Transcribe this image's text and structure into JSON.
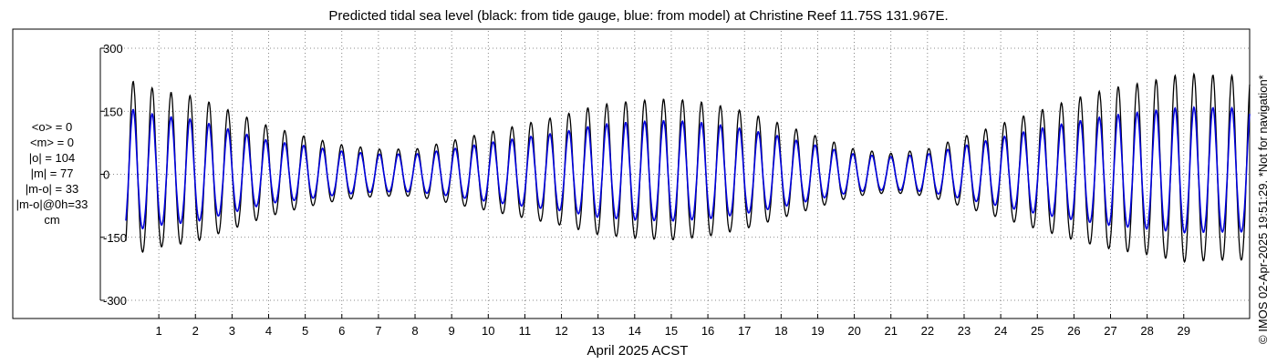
{
  "title": "Predicted tidal sea level (black: from tide gauge, blue: from model) at Christine Reef 11.75S 131.967E.",
  "credit": "© IMOS 02-Apr-2025 19:51:29. *Not for navigation*",
  "stats": {
    "mean_obs": "<o> = 0",
    "mean_model": "<m> = 0",
    "abs_obs": "|o| = 104",
    "abs_model": "|m| = 77",
    "abs_diff": "|m-o| = 33",
    "abs_diff_0h": "|m-o|@0h=33",
    "unit": "cm"
  },
  "colors": {
    "gauge": "#000000",
    "model": "#0000dd",
    "grid": "#666666"
  },
  "chart_data": {
    "type": "line",
    "title": "Predicted tidal sea level (black: from tide gauge, blue: from model) at Christine Reef 11.75S 131.967E.",
    "xlabel": "April 2025 ACST",
    "ylabel": "",
    "x_ticks": [
      "1",
      "2",
      "3",
      "4",
      "5",
      "6",
      "7",
      "8",
      "9",
      "10",
      "11",
      "12",
      "13",
      "14",
      "15",
      "16",
      "17",
      "18",
      "19",
      "20",
      "21",
      "22",
      "23",
      "24",
      "25",
      "26",
      "27",
      "28",
      "29"
    ],
    "y_ticks": [
      "300",
      "150",
      "0",
      "-150",
      "-300"
    ],
    "ylim": [
      -300,
      300
    ],
    "xlim": [
      0.1,
      30.8
    ],
    "grid": true,
    "period_days": 0.5175,
    "series": [
      {
        "color": "#000000",
        "amplitude_by_day": [
          230,
          200,
          185,
          150,
          115,
          90,
          70,
          60,
          60,
          80,
          100,
          120,
          140,
          165,
          175,
          180,
          170,
          150,
          120,
          90,
          60,
          50,
          60,
          90,
          120,
          150,
          180,
          205,
          220,
          240,
          235
        ]
      },
      {
        "color": "#0000dd",
        "amplitude_by_day": [
          160,
          140,
          130,
          105,
          80,
          68,
          55,
          48,
          48,
          60,
          75,
          88,
          100,
          118,
          125,
          128,
          122,
          108,
          90,
          68,
          48,
          42,
          48,
          68,
          88,
          108,
          125,
          140,
          150,
          160,
          158
        ]
      }
    ]
  }
}
